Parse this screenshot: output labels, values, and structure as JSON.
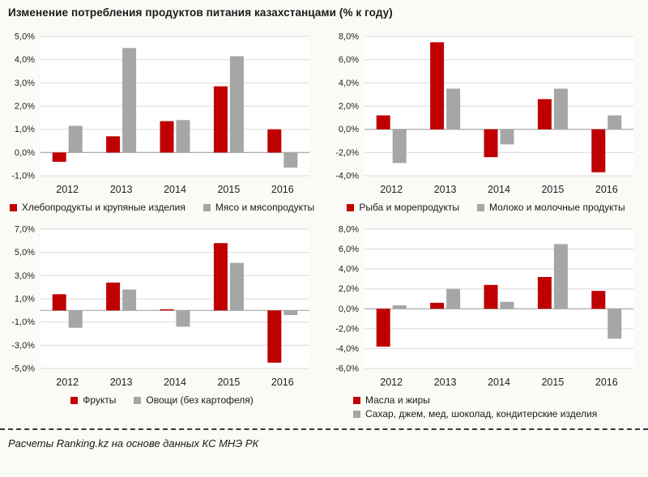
{
  "title": "Изменение потребления продуктов питания казахстанцами (% к году)",
  "footer": "Расчеты Ranking.kz на основе данных КС МНЭ РК",
  "colors": {
    "red": "#C00000",
    "gray": "#A6A6A6",
    "grid": "#D9D9D9",
    "axis": "#A6A6A6",
    "text": "#1f1f1f"
  },
  "chart_data": [
    {
      "type": "bar",
      "position": "top-left",
      "categories": [
        "2012",
        "2013",
        "2014",
        "2015",
        "2016"
      ],
      "series": [
        {
          "name": "Хлебопродукты и крупяные изделия",
          "color": "red",
          "values": [
            -0.4,
            0.7,
            1.35,
            2.85,
            1.0
          ]
        },
        {
          "name": "Мясо и мясопродукты",
          "color": "gray",
          "values": [
            1.15,
            4.5,
            1.4,
            4.15,
            -0.65
          ]
        }
      ],
      "ylim": [
        -1,
        5
      ],
      "ytick_step": 1,
      "grid": true,
      "legend_position": "bottom",
      "legend_layout": "row"
    },
    {
      "type": "bar",
      "position": "top-right",
      "categories": [
        "2012",
        "2013",
        "2014",
        "2015",
        "2016"
      ],
      "series": [
        {
          "name": "Рыба и морепродукты",
          "color": "red",
          "values": [
            1.2,
            7.5,
            -2.4,
            2.6,
            -3.7
          ]
        },
        {
          "name": "Молоко и молочные продукты",
          "color": "gray",
          "values": [
            -2.9,
            3.5,
            -1.3,
            3.5,
            1.2
          ]
        }
      ],
      "ylim": [
        -4,
        8
      ],
      "ytick_step": 2,
      "grid": true,
      "legend_position": "bottom",
      "legend_layout": "row"
    },
    {
      "type": "bar",
      "position": "bottom-left",
      "categories": [
        "2012",
        "2013",
        "2014",
        "2015",
        "2016"
      ],
      "series": [
        {
          "name": "Фрукты",
          "color": "red",
          "values": [
            1.4,
            2.4,
            0.1,
            5.8,
            -4.5
          ]
        },
        {
          "name": "Овощи (без картофеля)",
          "color": "gray",
          "values": [
            -1.5,
            1.8,
            -1.4,
            4.1,
            -0.4
          ]
        }
      ],
      "ylim": [
        -5,
        7
      ],
      "ytick_step": 2,
      "grid": true,
      "legend_position": "bottom",
      "legend_layout": "row"
    },
    {
      "type": "bar",
      "position": "bottom-right",
      "categories": [
        "2012",
        "2013",
        "2014",
        "2015",
        "2016"
      ],
      "series": [
        {
          "name": "Масла и жиры",
          "color": "red",
          "values": [
            -3.8,
            0.6,
            2.4,
            3.2,
            1.8
          ]
        },
        {
          "name": "Сахар, джем, мед, шоколад, кондитерские изделия",
          "color": "gray",
          "values": [
            0.35,
            2.0,
            0.7,
            6.5,
            -3.0
          ]
        }
      ],
      "ylim": [
        -6,
        8
      ],
      "ytick_step": 2,
      "grid": true,
      "legend_position": "bottom",
      "legend_layout": "column"
    }
  ]
}
